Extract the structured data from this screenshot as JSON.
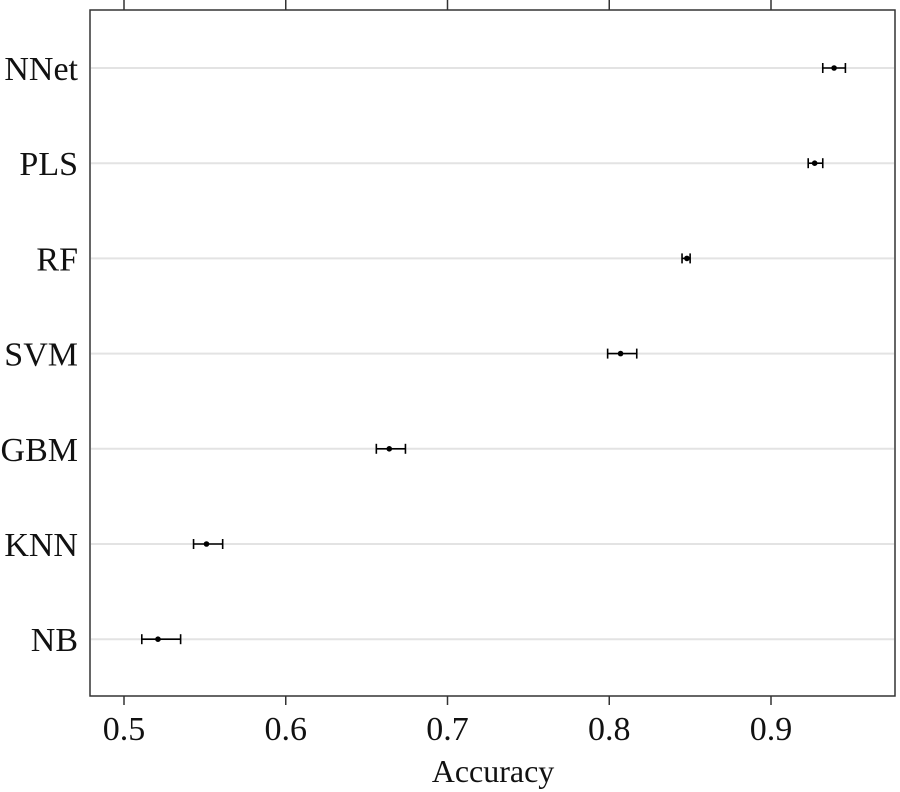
{
  "chart_data": {
    "type": "dot-errorbar",
    "title": "",
    "xlabel": "Accuracy",
    "ylabel": "",
    "xlim": [
      0.48,
      0.98
    ],
    "x_ticks": [
      "0.5",
      "0.6",
      "0.7",
      "0.8",
      "0.9"
    ],
    "grid": "horizontal",
    "categories": [
      "NNet",
      "PLS",
      "RF",
      "SVM",
      "GBM",
      "KNN",
      "NB"
    ],
    "series": [
      {
        "values": [
          0.939,
          0.927,
          0.848,
          0.807,
          0.664,
          0.551,
          0.521
        ],
        "lower": [
          0.932,
          0.923,
          0.845,
          0.799,
          0.656,
          0.543,
          0.511
        ],
        "upper": [
          0.946,
          0.932,
          0.85,
          0.817,
          0.674,
          0.561,
          0.535
        ]
      }
    ],
    "colors": {
      "points": "#000000",
      "grid": "#e3e3e3",
      "frame": "#333333"
    }
  }
}
